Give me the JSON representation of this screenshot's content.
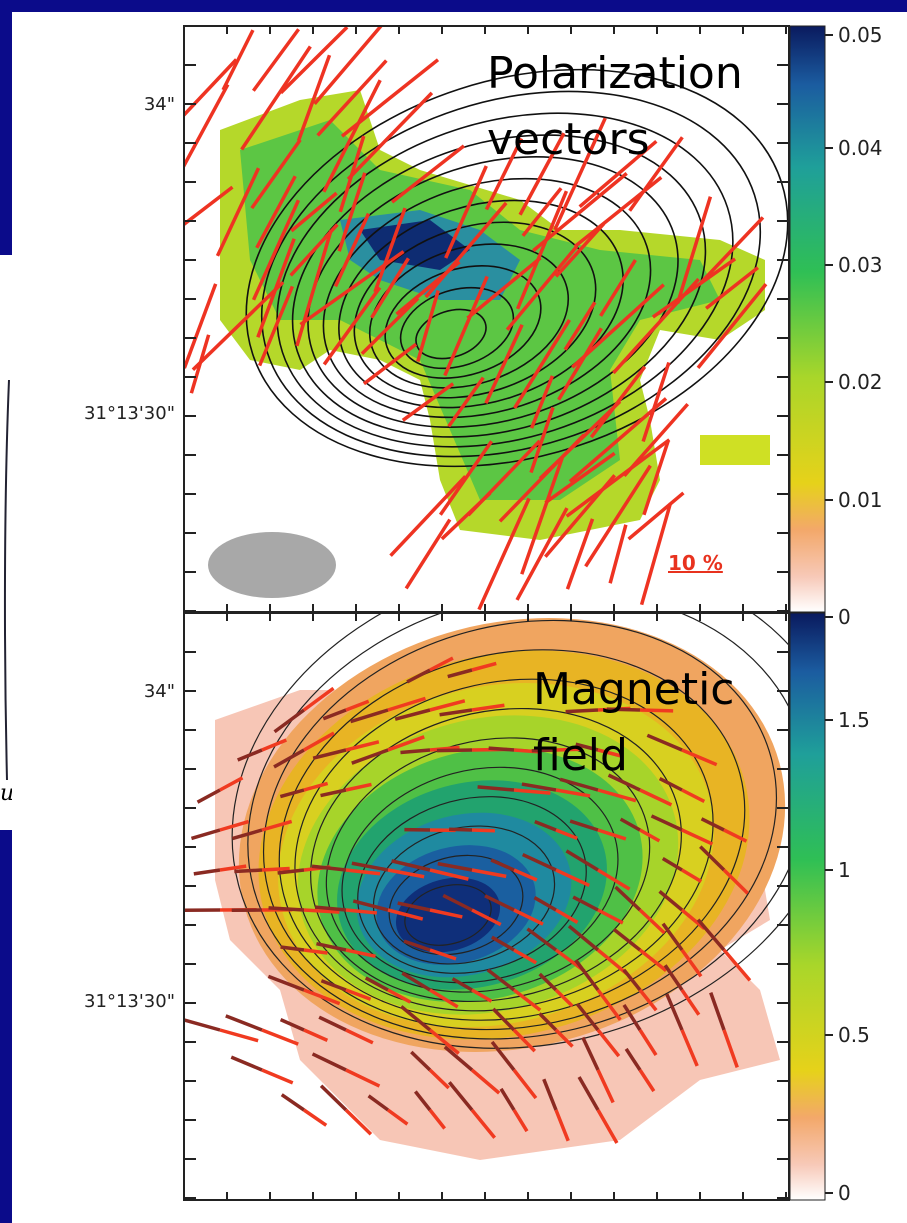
{
  "fragment": "u",
  "panels": [
    {
      "label": [
        "Polarization",
        "vectors"
      ],
      "y_labels": [
        "34\"",
        "31°13'30\""
      ],
      "scale_label": "10 %",
      "colorbar_labels": [
        "0.05",
        "0.04",
        "0.03",
        "0.02",
        "0.01",
        "0"
      ]
    },
    {
      "label": [
        "Magnetic",
        "field"
      ],
      "y_labels": [
        "34\"",
        "31°13'30\""
      ],
      "colorbar_labels": [
        "1.5",
        "1",
        "0.5",
        "0"
      ]
    }
  ]
}
